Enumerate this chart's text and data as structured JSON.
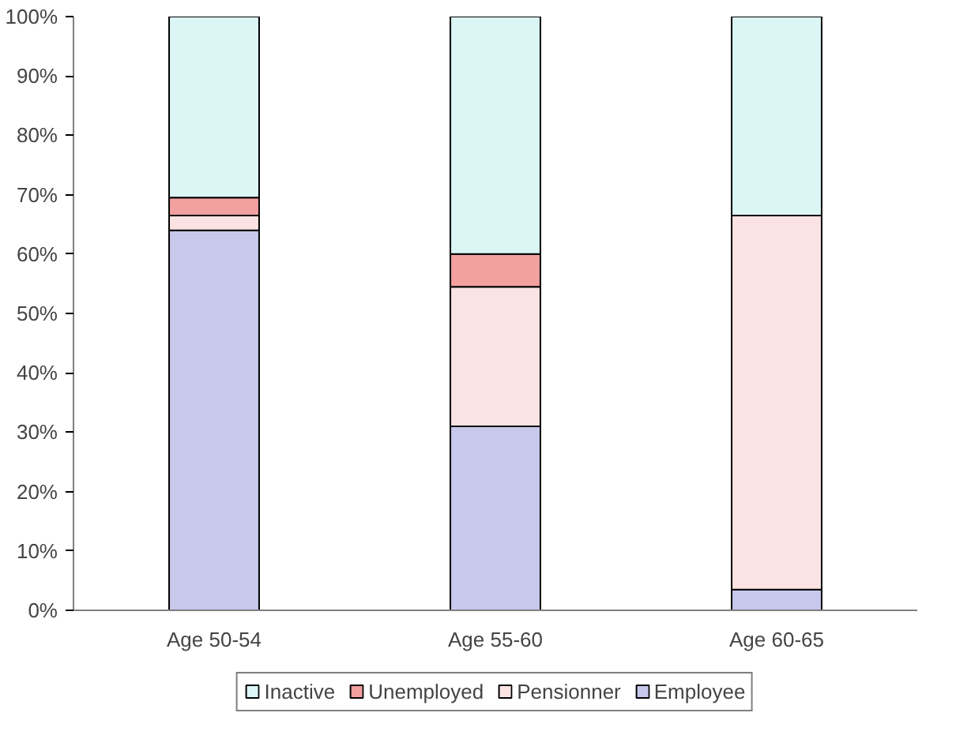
{
  "chart_data": {
    "type": "bar",
    "stacked": true,
    "categories": [
      "Age 50-54",
      "Age 55-60",
      "Age 60-65"
    ],
    "series": [
      {
        "name": "Employee",
        "color": "#c8c8ec",
        "values": [
          64,
          31,
          3.5
        ]
      },
      {
        "name": "Pensionner",
        "color": "#fbe3e3",
        "values": [
          2.5,
          23.5,
          63
        ]
      },
      {
        "name": "Unemployed",
        "color": "#f2a0a0",
        "values": [
          3,
          5.5,
          0
        ]
      },
      {
        "name": "Inactive",
        "color": "#dcf6f6",
        "values": [
          30.5,
          40,
          33.5
        ]
      }
    ],
    "ylim": [
      0,
      100
    ],
    "yticks": [
      {
        "value": 0,
        "label": "0%"
      },
      {
        "value": 10,
        "label": "10%"
      },
      {
        "value": 20,
        "label": "20%"
      },
      {
        "value": 30,
        "label": "30%"
      },
      {
        "value": 40,
        "label": "40%"
      },
      {
        "value": 50,
        "label": "50%"
      },
      {
        "value": 60,
        "label": "60%"
      },
      {
        "value": 70,
        "label": "70%"
      },
      {
        "value": 80,
        "label": "80%"
      },
      {
        "value": 90,
        "label": "90%"
      },
      {
        "value": 100,
        "label": "100%"
      }
    ],
    "grid": false,
    "legend": "bottom"
  }
}
